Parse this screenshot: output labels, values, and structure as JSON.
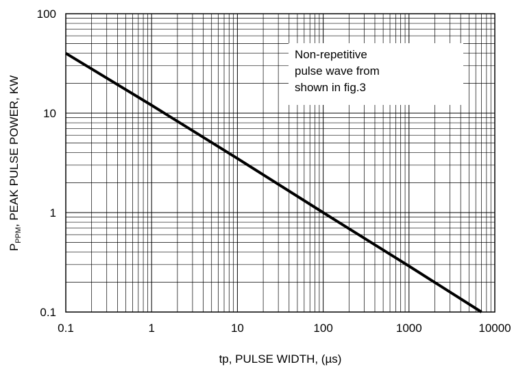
{
  "chart_data": {
    "type": "line",
    "x_scale": "log",
    "y_scale": "log",
    "xlim": [
      0.1,
      10000
    ],
    "ylim": [
      0.1,
      100
    ],
    "grid": true,
    "xlabel": "tp, PULSE WIDTH, (µs)",
    "ylabel": {
      "main": "P",
      "subscript": "PPM",
      "rest": ", PEAK PULSE POWER, KW"
    },
    "x_ticks": [
      "0.1",
      "1",
      "10",
      "100",
      "1000",
      "10000"
    ],
    "y_ticks": [
      "0.1",
      "1",
      "10",
      "100"
    ],
    "annotation": [
      "Non-repetitive",
      "pulse wave from",
      "shown in fig.3"
    ],
    "series": [
      {
        "x": [
          0.1,
          1,
          10,
          100,
          1000,
          7000
        ],
        "y": [
          40,
          12,
          3.5,
          1.0,
          0.29,
          0.1
        ]
      }
    ],
    "colors": {
      "line": "#000000",
      "grid": "#000000",
      "annotation_bg": "#ffffff"
    }
  }
}
